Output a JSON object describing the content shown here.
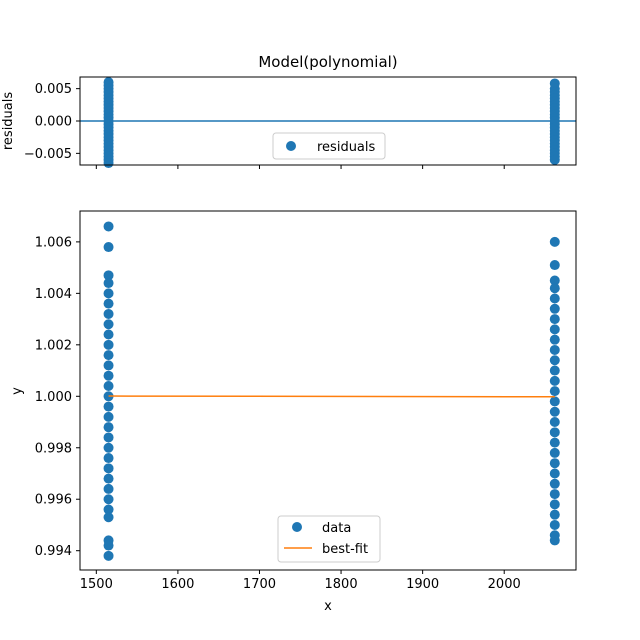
{
  "chart_data": [
    {
      "type": "scatter",
      "panel": "residuals",
      "title": "Model(polynomial)",
      "xlabel": "",
      "ylabel": "residuals",
      "xlim": [
        1480,
        2088
      ],
      "ylim": [
        -0.0068,
        0.0068
      ],
      "xticks": [
        1500,
        1600,
        1700,
        1800,
        1900,
        2000
      ],
      "yticks": [
        -0.005,
        0.0,
        0.005
      ],
      "ytick_labels": [
        "−0.005",
        "0.000",
        "0.005"
      ],
      "grid": false,
      "legend": {
        "placement": "lower-center",
        "entries": [
          "residuals"
        ]
      },
      "zero_line": 0.0,
      "colors": {
        "points": "#1f77b4",
        "zero_line": "#1f77b4"
      },
      "series": [
        {
          "name": "residuals",
          "x_clusters": [
            1515,
            2062
          ],
          "points": [
            {
              "x": 1515,
              "y": 0.006
            },
            {
              "x": 1515,
              "y": 0.0055
            },
            {
              "x": 1515,
              "y": 0.005
            },
            {
              "x": 1515,
              "y": 0.0045
            },
            {
              "x": 1515,
              "y": 0.004
            },
            {
              "x": 1515,
              "y": 0.0035
            },
            {
              "x": 1515,
              "y": 0.003
            },
            {
              "x": 1515,
              "y": 0.0025
            },
            {
              "x": 1515,
              "y": 0.002
            },
            {
              "x": 1515,
              "y": 0.0015
            },
            {
              "x": 1515,
              "y": 0.001
            },
            {
              "x": 1515,
              "y": 0.0005
            },
            {
              "x": 1515,
              "y": 0.0
            },
            {
              "x": 1515,
              "y": -0.0005
            },
            {
              "x": 1515,
              "y": -0.001
            },
            {
              "x": 1515,
              "y": -0.0015
            },
            {
              "x": 1515,
              "y": -0.002
            },
            {
              "x": 1515,
              "y": -0.0025
            },
            {
              "x": 1515,
              "y": -0.003
            },
            {
              "x": 1515,
              "y": -0.0035
            },
            {
              "x": 1515,
              "y": -0.004
            },
            {
              "x": 1515,
              "y": -0.0045
            },
            {
              "x": 1515,
              "y": -0.005
            },
            {
              "x": 1515,
              "y": -0.0055
            },
            {
              "x": 1515,
              "y": -0.006
            },
            {
              "x": 1515,
              "y": -0.0065
            },
            {
              "x": 2062,
              "y": 0.0058
            },
            {
              "x": 2062,
              "y": 0.005
            },
            {
              "x": 2062,
              "y": 0.0045
            },
            {
              "x": 2062,
              "y": 0.004
            },
            {
              "x": 2062,
              "y": 0.0035
            },
            {
              "x": 2062,
              "y": 0.003
            },
            {
              "x": 2062,
              "y": 0.0025
            },
            {
              "x": 2062,
              "y": 0.002
            },
            {
              "x": 2062,
              "y": 0.0015
            },
            {
              "x": 2062,
              "y": 0.001
            },
            {
              "x": 2062,
              "y": 0.0005
            },
            {
              "x": 2062,
              "y": 0.0
            },
            {
              "x": 2062,
              "y": -0.0005
            },
            {
              "x": 2062,
              "y": -0.001
            },
            {
              "x": 2062,
              "y": -0.0015
            },
            {
              "x": 2062,
              "y": -0.002
            },
            {
              "x": 2062,
              "y": -0.0025
            },
            {
              "x": 2062,
              "y": -0.003
            },
            {
              "x": 2062,
              "y": -0.0035
            },
            {
              "x": 2062,
              "y": -0.004
            },
            {
              "x": 2062,
              "y": -0.0045
            },
            {
              "x": 2062,
              "y": -0.005
            },
            {
              "x": 2062,
              "y": -0.0055
            },
            {
              "x": 2062,
              "y": -0.006
            }
          ]
        }
      ]
    },
    {
      "type": "scatter",
      "panel": "data",
      "title": "",
      "xlabel": "x",
      "ylabel": "y",
      "xlim": [
        1480,
        2088
      ],
      "ylim": [
        0.99325,
        1.0072
      ],
      "xticks": [
        1500,
        1600,
        1700,
        1800,
        1900,
        2000
      ],
      "yticks": [
        0.994,
        0.996,
        0.998,
        1.0,
        1.002,
        1.004,
        1.006
      ],
      "ytick_labels": [
        "0.994",
        "0.996",
        "0.998",
        "1.000",
        "1.002",
        "1.004",
        "1.006"
      ],
      "grid": false,
      "legend": {
        "placement": "lower-center",
        "entries": [
          "data",
          "best-fit"
        ]
      },
      "colors": {
        "data": "#1f77b4",
        "best_fit": "#ff7f0e"
      },
      "series": [
        {
          "name": "data",
          "points": [
            {
              "x": 1515,
              "y": 1.0066
            },
            {
              "x": 1515,
              "y": 1.0058
            },
            {
              "x": 1515,
              "y": 1.0047
            },
            {
              "x": 1515,
              "y": 1.0044
            },
            {
              "x": 1515,
              "y": 1.004
            },
            {
              "x": 1515,
              "y": 1.0036
            },
            {
              "x": 1515,
              "y": 1.0032
            },
            {
              "x": 1515,
              "y": 1.0028
            },
            {
              "x": 1515,
              "y": 1.0024
            },
            {
              "x": 1515,
              "y": 1.002
            },
            {
              "x": 1515,
              "y": 1.0016
            },
            {
              "x": 1515,
              "y": 1.0012
            },
            {
              "x": 1515,
              "y": 1.0008
            },
            {
              "x": 1515,
              "y": 1.0004
            },
            {
              "x": 1515,
              "y": 1.0
            },
            {
              "x": 1515,
              "y": 0.9996
            },
            {
              "x": 1515,
              "y": 0.9992
            },
            {
              "x": 1515,
              "y": 0.9988
            },
            {
              "x": 1515,
              "y": 0.9984
            },
            {
              "x": 1515,
              "y": 0.998
            },
            {
              "x": 1515,
              "y": 0.9976
            },
            {
              "x": 1515,
              "y": 0.9972
            },
            {
              "x": 1515,
              "y": 0.9968
            },
            {
              "x": 1515,
              "y": 0.9964
            },
            {
              "x": 1515,
              "y": 0.996
            },
            {
              "x": 1515,
              "y": 0.9956
            },
            {
              "x": 1515,
              "y": 0.9953
            },
            {
              "x": 1515,
              "y": 0.9944
            },
            {
              "x": 1515,
              "y": 0.9942
            },
            {
              "x": 1515,
              "y": 0.9938
            },
            {
              "x": 2062,
              "y": 1.006
            },
            {
              "x": 2062,
              "y": 1.0051
            },
            {
              "x": 2062,
              "y": 1.0045
            },
            {
              "x": 2062,
              "y": 1.0042
            },
            {
              "x": 2062,
              "y": 1.0038
            },
            {
              "x": 2062,
              "y": 1.0034
            },
            {
              "x": 2062,
              "y": 1.003
            },
            {
              "x": 2062,
              "y": 1.0026
            },
            {
              "x": 2062,
              "y": 1.0022
            },
            {
              "x": 2062,
              "y": 1.0018
            },
            {
              "x": 2062,
              "y": 1.0014
            },
            {
              "x": 2062,
              "y": 1.001
            },
            {
              "x": 2062,
              "y": 1.0006
            },
            {
              "x": 2062,
              "y": 1.0002
            },
            {
              "x": 2062,
              "y": 0.9998
            },
            {
              "x": 2062,
              "y": 0.9994
            },
            {
              "x": 2062,
              "y": 0.999
            },
            {
              "x": 2062,
              "y": 0.9986
            },
            {
              "x": 2062,
              "y": 0.9982
            },
            {
              "x": 2062,
              "y": 0.9978
            },
            {
              "x": 2062,
              "y": 0.9974
            },
            {
              "x": 2062,
              "y": 0.997
            },
            {
              "x": 2062,
              "y": 0.9966
            },
            {
              "x": 2062,
              "y": 0.9962
            },
            {
              "x": 2062,
              "y": 0.9958
            },
            {
              "x": 2062,
              "y": 0.9954
            },
            {
              "x": 2062,
              "y": 0.995
            },
            {
              "x": 2062,
              "y": 0.9946
            },
            {
              "x": 2062,
              "y": 0.9944
            }
          ]
        },
        {
          "name": "best-fit",
          "line": [
            {
              "x": 1515,
              "y": 1.00001
            },
            {
              "x": 2062,
              "y": 0.99998
            }
          ]
        }
      ]
    }
  ]
}
